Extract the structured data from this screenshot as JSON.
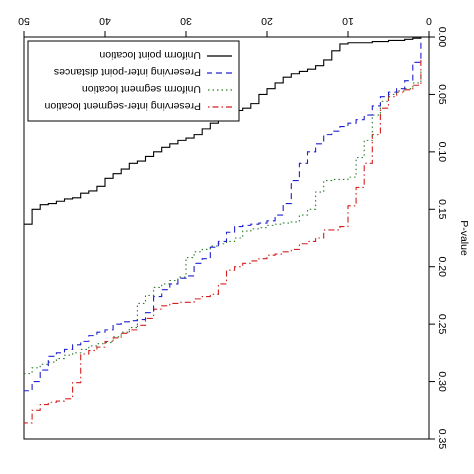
{
  "chart_data": {
    "type": "line",
    "orientation": "rotated-180",
    "xlabel": "",
    "ylabel": "P-value",
    "xlim": [
      0,
      50
    ],
    "ylim": [
      0,
      0.35
    ],
    "xticks": [
      "0",
      "10",
      "20",
      "30",
      "40",
      "50"
    ],
    "yticks": [
      "0.00",
      "0.05",
      "0.10",
      "0.15",
      "0.20",
      "0.25",
      "0.30",
      "0.35"
    ],
    "legend_position": "top-left",
    "series": [
      {
        "name": "Preserving inter-segment location",
        "color": "#d42020",
        "dash": "dashdot",
        "x": [
          1,
          2,
          3,
          4,
          5,
          6,
          7,
          8,
          9,
          10,
          11,
          12,
          13,
          14,
          15,
          16,
          17,
          18,
          19,
          20,
          21,
          22,
          23,
          24,
          25,
          26,
          27,
          28,
          29,
          30,
          31,
          32,
          33,
          34,
          35,
          36,
          37,
          38,
          39,
          40,
          41,
          42,
          43,
          44,
          45,
          46,
          47,
          48,
          49,
          50
        ],
        "y": [
          0.02,
          0.042,
          0.046,
          0.048,
          0.052,
          0.062,
          0.085,
          0.11,
          0.131,
          0.147,
          0.165,
          0.168,
          0.168,
          0.175,
          0.178,
          0.18,
          0.185,
          0.187,
          0.189,
          0.19,
          0.193,
          0.195,
          0.197,
          0.2,
          0.203,
          0.215,
          0.224,
          0.226,
          0.228,
          0.231,
          0.231,
          0.232,
          0.234,
          0.237,
          0.245,
          0.251,
          0.255,
          0.258,
          0.262,
          0.265,
          0.27,
          0.273,
          0.276,
          0.301,
          0.315,
          0.317,
          0.318,
          0.32,
          0.325,
          0.336
        ]
      },
      {
        "name": "Uniform segment location",
        "color": "#2e7d2e",
        "dash": "dotted",
        "x": [
          1,
          2,
          3,
          4,
          5,
          6,
          7,
          8,
          9,
          10,
          11,
          12,
          13,
          14,
          15,
          16,
          17,
          18,
          19,
          20,
          21,
          22,
          23,
          24,
          25,
          26,
          27,
          28,
          29,
          30,
          31,
          32,
          33,
          34,
          35,
          36,
          37,
          38,
          39,
          40,
          41,
          42,
          43,
          44,
          45,
          46,
          47,
          48,
          49,
          50
        ],
        "y": [
          0.03,
          0.04,
          0.045,
          0.047,
          0.05,
          0.056,
          0.068,
          0.09,
          0.105,
          0.122,
          0.124,
          0.124,
          0.125,
          0.135,
          0.15,
          0.155,
          0.161,
          0.162,
          0.163,
          0.164,
          0.166,
          0.167,
          0.169,
          0.175,
          0.178,
          0.18,
          0.182,
          0.185,
          0.187,
          0.192,
          0.209,
          0.212,
          0.215,
          0.218,
          0.225,
          0.232,
          0.253,
          0.257,
          0.261,
          0.266,
          0.267,
          0.269,
          0.272,
          0.275,
          0.277,
          0.28,
          0.283,
          0.285,
          0.288,
          0.293
        ]
      },
      {
        "name": "Preserving inter-point distances",
        "color": "#2020d0",
        "dash": "dashed",
        "x": [
          1,
          2,
          3,
          4,
          5,
          6,
          7,
          8,
          9,
          10,
          11,
          12,
          13,
          14,
          15,
          16,
          17,
          18,
          19,
          20,
          21,
          22,
          23,
          24,
          25,
          26,
          27,
          28,
          29,
          30,
          31,
          32,
          33,
          34,
          35,
          36,
          37,
          38,
          39,
          40,
          41,
          42,
          43,
          44,
          45,
          46,
          47,
          48,
          49,
          50
        ],
        "y": [
          0.005,
          0.022,
          0.038,
          0.045,
          0.048,
          0.052,
          0.06,
          0.068,
          0.072,
          0.075,
          0.078,
          0.082,
          0.085,
          0.093,
          0.1,
          0.11,
          0.125,
          0.145,
          0.155,
          0.16,
          0.162,
          0.163,
          0.164,
          0.165,
          0.17,
          0.178,
          0.183,
          0.193,
          0.197,
          0.208,
          0.21,
          0.215,
          0.22,
          0.226,
          0.24,
          0.246,
          0.247,
          0.248,
          0.25,
          0.255,
          0.257,
          0.26,
          0.265,
          0.268,
          0.272,
          0.275,
          0.278,
          0.29,
          0.3,
          0.308
        ]
      },
      {
        "name": "Uniform point location",
        "color": "#000000",
        "dash": "solid",
        "x": [
          1,
          2,
          3,
          4,
          5,
          6,
          7,
          8,
          9,
          10,
          11,
          12,
          13,
          14,
          15,
          16,
          17,
          18,
          19,
          20,
          21,
          22,
          23,
          24,
          25,
          26,
          27,
          28,
          29,
          30,
          31,
          32,
          33,
          34,
          35,
          36,
          37,
          38,
          39,
          40,
          41,
          42,
          43,
          44,
          45,
          46,
          47,
          48,
          49,
          50
        ],
        "y": [
          0.0,
          0.001,
          0.002,
          0.003,
          0.003,
          0.004,
          0.004,
          0.005,
          0.005,
          0.005,
          0.006,
          0.012,
          0.02,
          0.025,
          0.028,
          0.03,
          0.032,
          0.035,
          0.04,
          0.045,
          0.05,
          0.058,
          0.062,
          0.064,
          0.066,
          0.07,
          0.075,
          0.08,
          0.085,
          0.088,
          0.09,
          0.093,
          0.096,
          0.1,
          0.104,
          0.108,
          0.11,
          0.115,
          0.119,
          0.123,
          0.13,
          0.134,
          0.136,
          0.14,
          0.141,
          0.143,
          0.145,
          0.146,
          0.15,
          0.163
        ]
      }
    ]
  }
}
